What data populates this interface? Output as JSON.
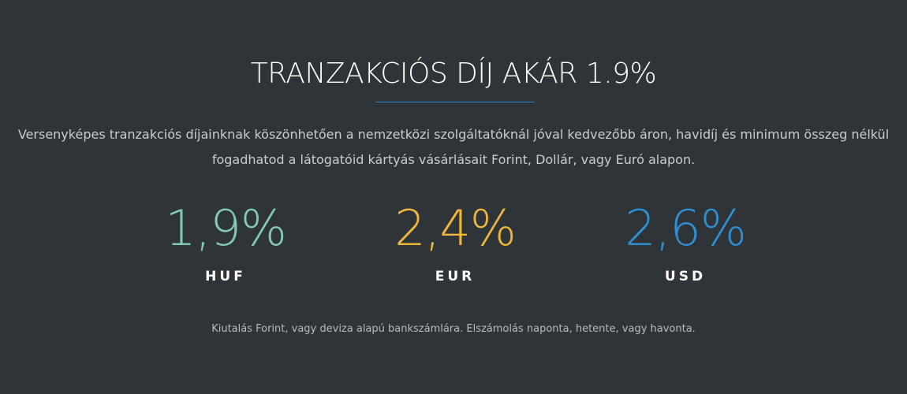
{
  "section": {
    "title": "TRANZAKCIÓS DÍJ AKÁR 1.9%",
    "description_line1": "Versenyképes tranzakciós díjainknak köszönhetően a nemzetközi szolgáltatóknál jóval kedvezőbb áron, havidíj és minimum összeg nélkül",
    "description_line2": "fogadhatod a látogatóid kártyás vásárlásait Forint, Dollár, vagy Euró alapon.",
    "stats": [
      {
        "value": "1,9%",
        "label": "HUF",
        "color": "#84c9b5"
      },
      {
        "value": "2,4%",
        "label": "EUR",
        "color": "#f0b63a"
      },
      {
        "value": "2,6%",
        "label": "USD",
        "color": "#2f8fd0"
      }
    ],
    "footer_note": "Kiutalás Forint, vagy deviza alapú bankszámlára. Elszámolás naponta, hetente, vagy havonta."
  },
  "colors": {
    "background": "#2f3438",
    "divider": "#2f86c6"
  }
}
